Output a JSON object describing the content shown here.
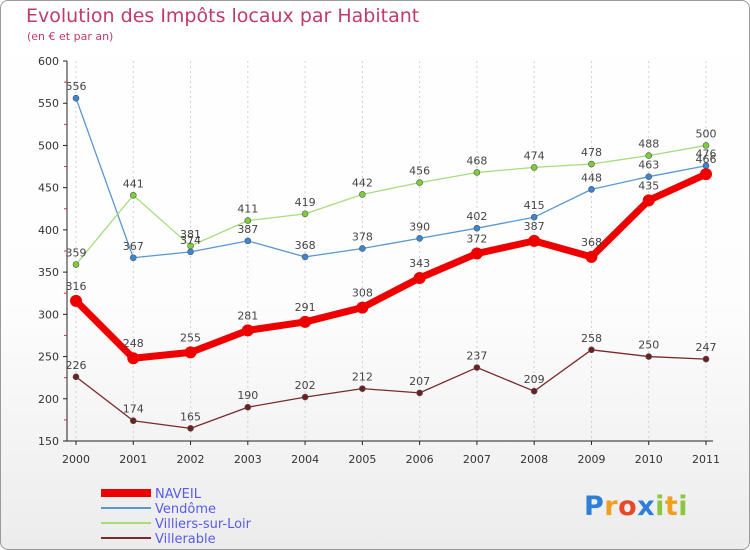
{
  "header": {
    "title": "Evolution des Impôts locaux par Habitant",
    "subtitle": "(en € et par an)"
  },
  "brand": {
    "logo_text": "Proxiti",
    "letters": [
      {
        "ch": "P",
        "color": "#2f7fd6"
      },
      {
        "ch": "r",
        "color": "#f0a020"
      },
      {
        "ch": "o",
        "color": "#e84828"
      },
      {
        "ch": "x",
        "color": "#2f7fd6"
      },
      {
        "ch": "i",
        "color": "#8cc63f"
      },
      {
        "ch": "t",
        "color": "#f0a020"
      },
      {
        "ch": "i",
        "color": "#8cc63f"
      }
    ]
  },
  "chart_data": {
    "type": "line",
    "title": "Evolution des Impôts locaux par Habitant",
    "subtitle": "(en € et par an)",
    "xlabel": "",
    "ylabel": "",
    "categories": [
      "2000",
      "2001",
      "2002",
      "2003",
      "2004",
      "2005",
      "2006",
      "2007",
      "2008",
      "2009",
      "2010",
      "2011"
    ],
    "ylim": [
      150,
      600
    ],
    "yticks": [
      150,
      200,
      250,
      300,
      350,
      400,
      450,
      500,
      550,
      600
    ],
    "grid": "vertical-dashed",
    "legend_position": "bottom-left",
    "series": [
      {
        "name": "Vendôme",
        "color": "#5b97cf",
        "marker": "#3a86d6",
        "values": [
          556,
          367,
          374,
          387,
          368,
          378,
          390,
          402,
          415,
          448,
          463,
          476
        ]
      },
      {
        "name": "Villiers-sur-Loir",
        "color": "#a6dd7c",
        "marker": "#7ccf3a",
        "values": [
          359,
          441,
          381,
          411,
          419,
          442,
          456,
          468,
          474,
          478,
          488,
          500
        ]
      },
      {
        "name": "Villerable",
        "color": "#7a2a2a",
        "marker": "#6e1f1f",
        "values": [
          226,
          174,
          165,
          190,
          202,
          212,
          207,
          237,
          209,
          258,
          250,
          247
        ]
      },
      {
        "name": "NAVEIL",
        "color": "#ee0000",
        "marker": "#ee0000",
        "values": [
          316,
          248,
          255,
          281,
          291,
          308,
          343,
          372,
          387,
          368,
          435,
          466
        ]
      }
    ],
    "legend": [
      "NAVEIL",
      "Vendôme",
      "Villiers-sur-Loir",
      "Villerable"
    ]
  }
}
